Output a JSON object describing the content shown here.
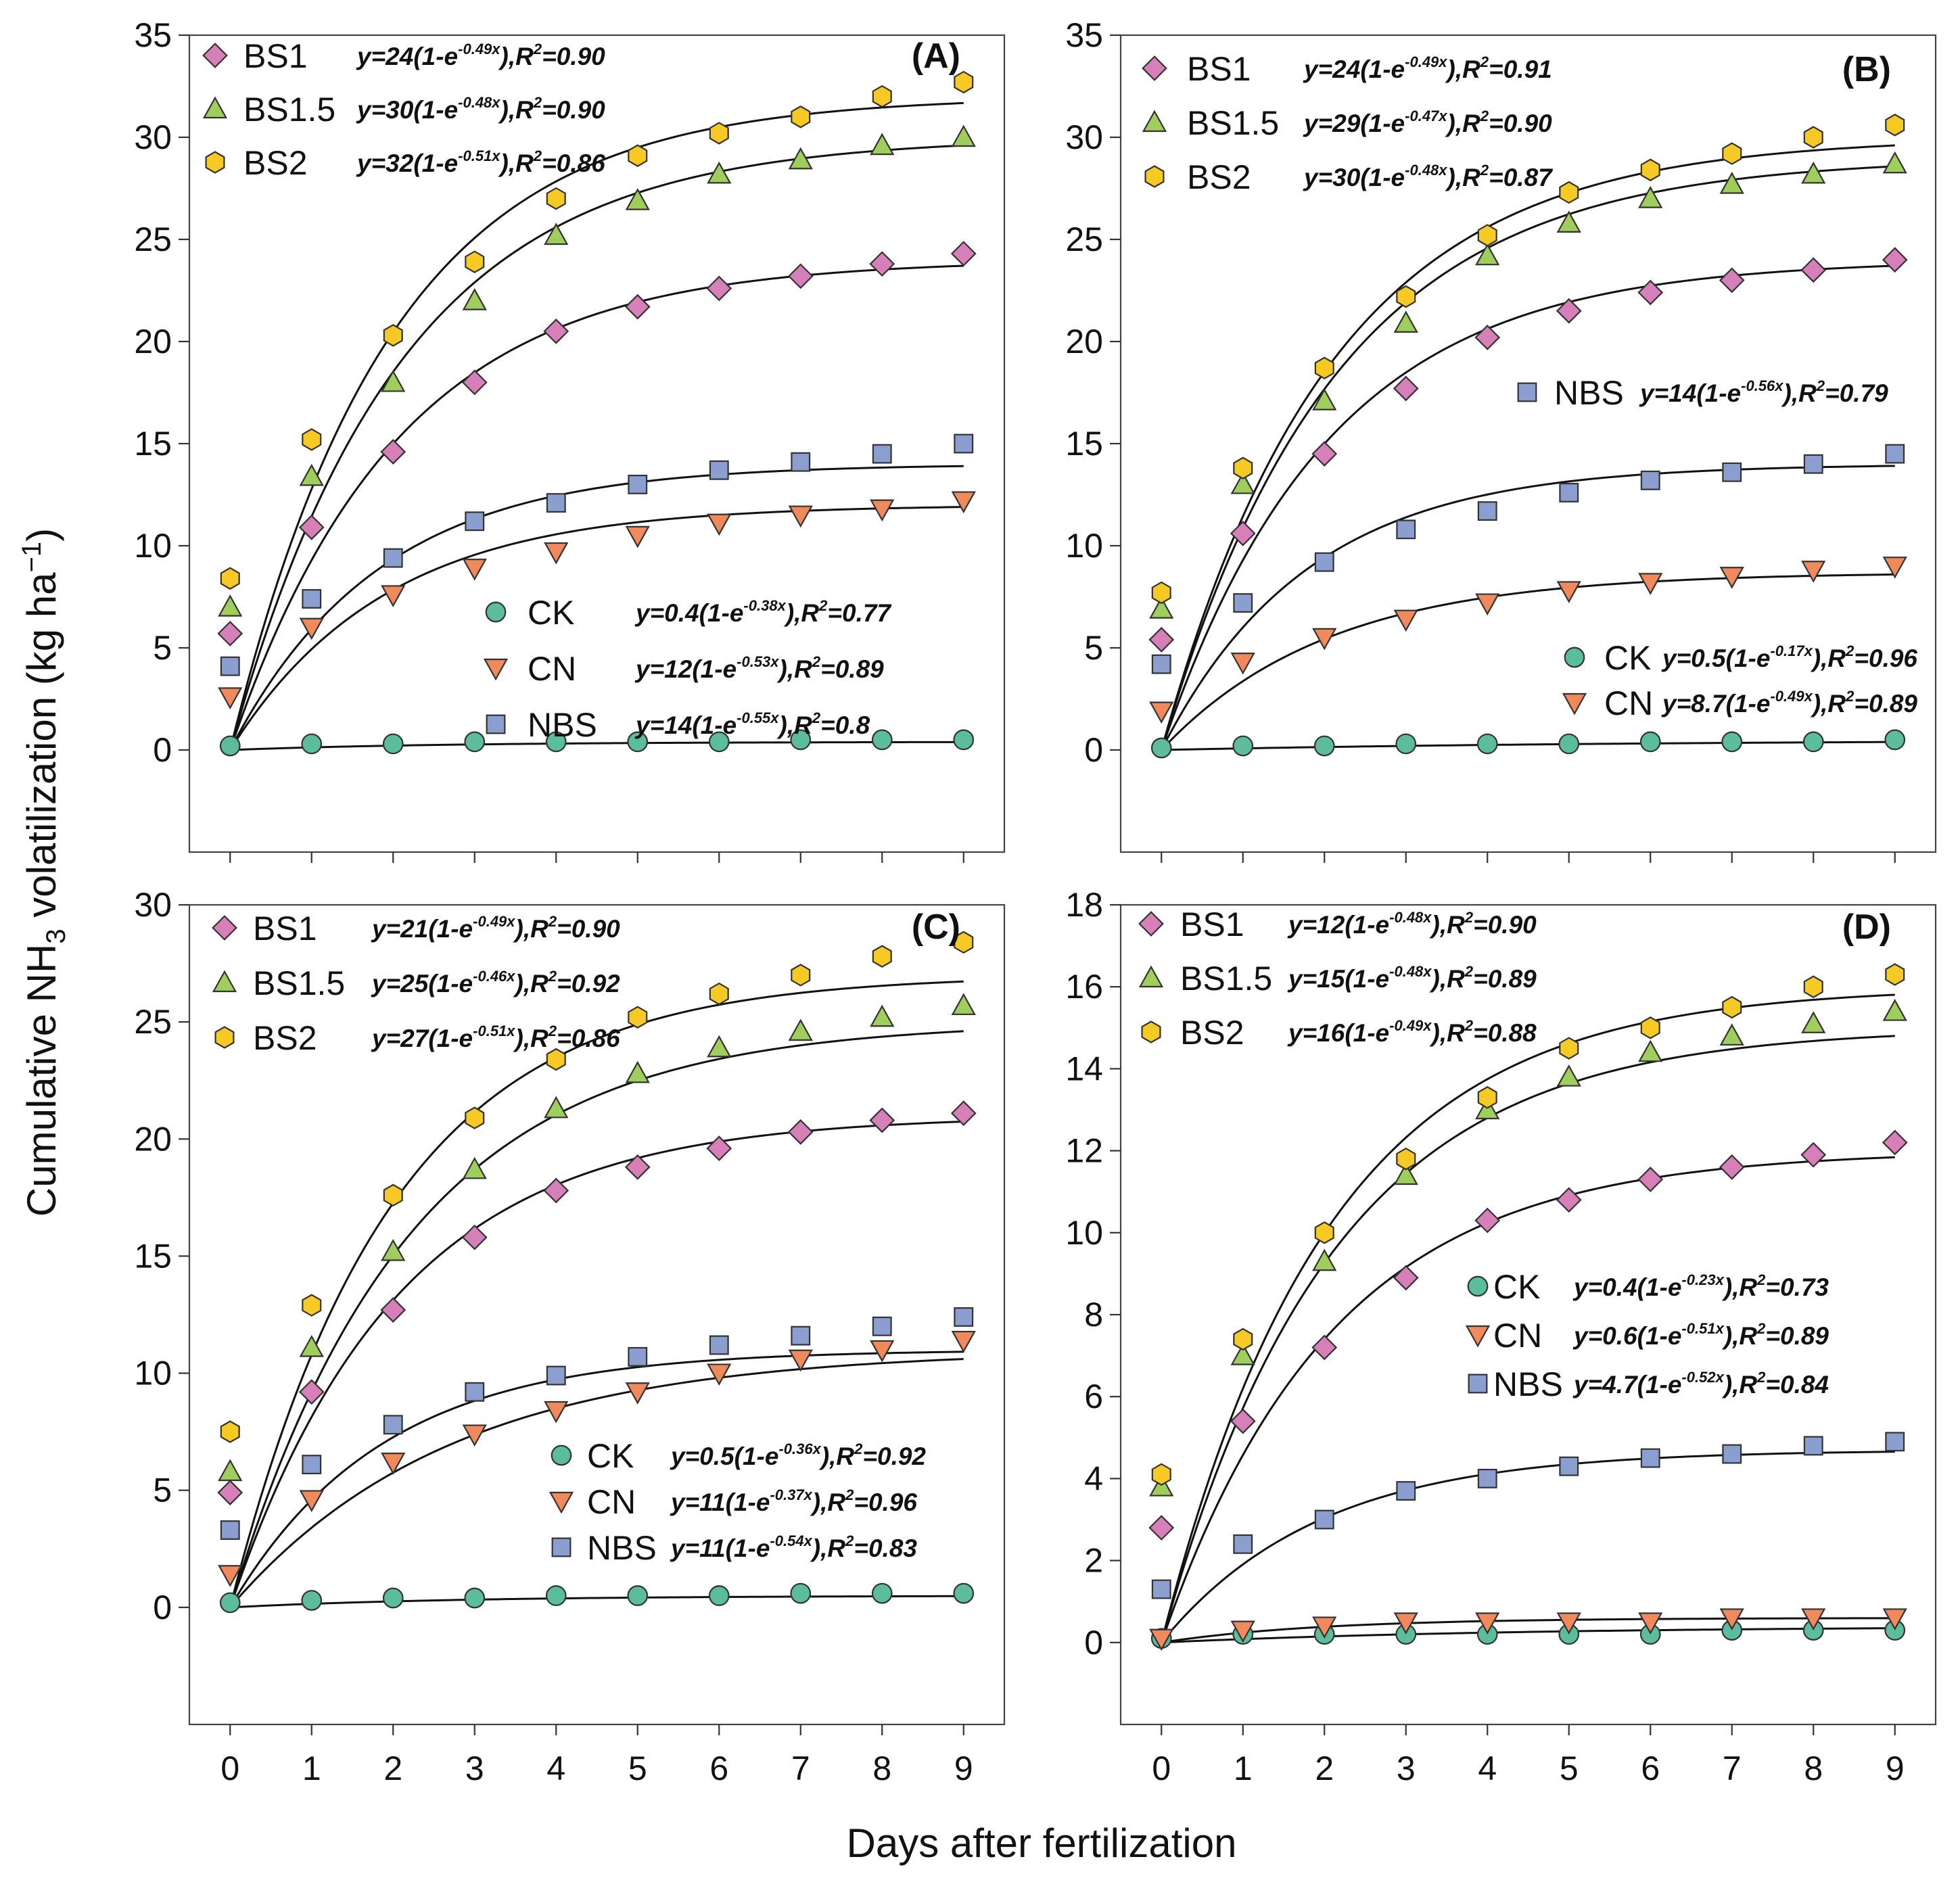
{
  "figure": {
    "y_axis_title_pre": "Cumulative NH",
    "y_axis_title_sub": "3",
    "y_axis_title_post": " volatilization (kg ha",
    "y_axis_title_sup": "−1",
    "y_axis_title_end": ")",
    "x_axis_title": "Days after fertilization"
  },
  "colors": {
    "CK": "#5bbd9b",
    "CN": "#f08a5d",
    "NBS": "#8a9fd0",
    "BS1": "#d77fb8",
    "BS1.5": "#9fce5d",
    "BS2": "#f6c924"
  },
  "chart_data": [
    {
      "type": "scatter",
      "panel": "(A)",
      "xlabel": "Days after fertilization",
      "ylabel": "Cumulative NH3 volatilization (kg ha−1)",
      "x": [
        0,
        1,
        2,
        3,
        4,
        5,
        6,
        7,
        8,
        9
      ],
      "ylim": [
        -5,
        35
      ],
      "yticks": [
        0,
        5,
        10,
        15,
        20,
        25,
        30,
        35
      ],
      "legend_groups": [
        [
          "BS1",
          "BS1.5",
          "BS2"
        ],
        [
          "CK",
          "CN",
          "NBS"
        ]
      ],
      "series": [
        {
          "name": "BS1",
          "marker": "diamond",
          "values": [
            5.7,
            10.9,
            14.6,
            18.0,
            20.5,
            21.7,
            22.6,
            23.2,
            23.8,
            24.3
          ],
          "fit_a": 24,
          "fit_b": 0.49,
          "eq_pre": "y=24(1-e",
          "eq_exp": "-0.49x",
          "eq_r2": "),R",
          "eq_r2_val": "=0.90"
        },
        {
          "name": "BS1.5",
          "marker": "triangle-up",
          "values": [
            7.0,
            13.4,
            18.0,
            22.0,
            25.2,
            26.9,
            28.2,
            28.9,
            29.6,
            30.0
          ],
          "fit_a": 30,
          "fit_b": 0.48,
          "eq_pre": "y=30(1-e",
          "eq_exp": "-0.48x",
          "eq_r2": "),R",
          "eq_r2_val": "=0.90"
        },
        {
          "name": "BS2",
          "marker": "hexagon",
          "values": [
            8.4,
            15.2,
            20.3,
            23.9,
            27.0,
            29.1,
            30.2,
            31.0,
            32.0,
            32.7
          ],
          "fit_a": 32,
          "fit_b": 0.51,
          "eq_pre": "y=32(1-e",
          "eq_exp": "-0.51x",
          "eq_r2": "),R",
          "eq_r2_val": "=0.86"
        },
        {
          "name": "CK",
          "marker": "circle",
          "values": [
            0.2,
            0.3,
            0.3,
            0.4,
            0.4,
            0.4,
            0.4,
            0.5,
            0.5,
            0.5
          ],
          "fit_a": 0.4,
          "fit_b": 0.38,
          "eq_pre": "y=0.4(1-e",
          "eq_exp": "-0.38x",
          "eq_r2": "),R",
          "eq_r2_val": "=0.77"
        },
        {
          "name": "CN",
          "marker": "triangle-down",
          "values": [
            2.6,
            6.0,
            7.6,
            8.9,
            9.7,
            10.5,
            11.1,
            11.5,
            11.8,
            12.2
          ],
          "fit_a": 12,
          "fit_b": 0.53,
          "eq_pre": "y=12(1-e",
          "eq_exp": "-0.53x",
          "eq_r2": "),R",
          "eq_r2_val": "=0.89"
        },
        {
          "name": "NBS",
          "marker": "square",
          "values": [
            4.1,
            7.4,
            9.4,
            11.2,
            12.1,
            13.0,
            13.7,
            14.1,
            14.5,
            15.0
          ],
          "fit_a": 14,
          "fit_b": 0.55,
          "eq_pre": "y=14(1-e",
          "eq_exp": "-0.55x",
          "eq_r2": "),R",
          "eq_r2_val": "=0.8"
        }
      ]
    },
    {
      "type": "scatter",
      "panel": "(B)",
      "xlabel": "Days after fertilization",
      "ylabel": "Cumulative NH3 volatilization (kg ha−1)",
      "x": [
        0,
        1,
        2,
        3,
        4,
        5,
        6,
        7,
        8,
        9
      ],
      "ylim": [
        -5,
        35
      ],
      "yticks": [
        0,
        5,
        10,
        15,
        20,
        25,
        30,
        35
      ],
      "legend_groups": [
        [
          "BS1",
          "BS1.5",
          "BS2"
        ],
        [
          "NBS"
        ],
        [
          "CK",
          "CN"
        ]
      ],
      "series": [
        {
          "name": "BS1",
          "marker": "diamond",
          "values": [
            5.4,
            10.6,
            14.5,
            17.7,
            20.2,
            21.5,
            22.4,
            23.0,
            23.5,
            24.0
          ],
          "fit_a": 24,
          "fit_b": 0.49,
          "eq_pre": "y=24(1-e",
          "eq_exp": "-0.49x",
          "eq_r2": "),R",
          "eq_r2_val": "=0.91"
        },
        {
          "name": "BS1.5",
          "marker": "triangle-up",
          "values": [
            6.9,
            13.0,
            17.1,
            20.9,
            24.2,
            25.8,
            27.0,
            27.7,
            28.2,
            28.7
          ],
          "fit_a": 29,
          "fit_b": 0.47,
          "eq_pre": "y=29(1-e",
          "eq_exp": "-0.47x",
          "eq_r2": "),R",
          "eq_r2_val": "=0.90"
        },
        {
          "name": "BS2",
          "marker": "hexagon",
          "values": [
            7.7,
            13.8,
            18.7,
            22.2,
            25.2,
            27.3,
            28.4,
            29.2,
            30.0,
            30.6
          ],
          "fit_a": 30,
          "fit_b": 0.48,
          "eq_pre": "y=30(1-e",
          "eq_exp": "-0.48x",
          "eq_r2": "),R",
          "eq_r2_val": "=0.87"
        },
        {
          "name": "NBS",
          "marker": "square",
          "values": [
            4.2,
            7.2,
            9.2,
            10.8,
            11.7,
            12.6,
            13.2,
            13.6,
            14.0,
            14.5
          ],
          "fit_a": 14,
          "fit_b": 0.56,
          "eq_pre": "y=14(1-e",
          "eq_exp": "-0.56x",
          "eq_r2": "),R",
          "eq_r2_val": "=0.79"
        },
        {
          "name": "CK",
          "marker": "circle",
          "values": [
            0.1,
            0.2,
            0.2,
            0.3,
            0.3,
            0.3,
            0.4,
            0.4,
            0.4,
            0.5
          ],
          "fit_a": 0.5,
          "fit_b": 0.17,
          "eq_pre": "y=0.5(1-e",
          "eq_exp": "-0.17x",
          "eq_r2": "),R",
          "eq_r2_val": "=0.96"
        },
        {
          "name": "CN",
          "marker": "triangle-down",
          "values": [
            1.9,
            4.3,
            5.5,
            6.4,
            7.2,
            7.8,
            8.2,
            8.5,
            8.8,
            9.0
          ],
          "fit_a": 8.7,
          "fit_b": 0.49,
          "eq_pre": "y=8.7(1-e",
          "eq_exp": "-0.49x",
          "eq_r2": "),R",
          "eq_r2_val": "=0.89"
        }
      ]
    },
    {
      "type": "scatter",
      "panel": "(C)",
      "xlabel": "Days after fertilization",
      "ylabel": "Cumulative NH3 volatilization (kg ha−1)",
      "x": [
        0,
        1,
        2,
        3,
        4,
        5,
        6,
        7,
        8,
        9
      ],
      "ylim": [
        -5,
        30
      ],
      "yticks": [
        0,
        5,
        10,
        15,
        20,
        25,
        30
      ],
      "legend_groups": [
        [
          "BS1",
          "BS1.5",
          "BS2"
        ],
        [
          "CK",
          "CN",
          "NBS"
        ]
      ],
      "series": [
        {
          "name": "BS1",
          "marker": "diamond",
          "values": [
            4.9,
            9.2,
            12.7,
            15.8,
            17.8,
            18.8,
            19.6,
            20.3,
            20.8,
            21.1
          ],
          "fit_a": 21,
          "fit_b": 0.49,
          "eq_pre": "y=21(1-e",
          "eq_exp": "-0.49x",
          "eq_r2": "),R",
          "eq_r2_val": "=0.90"
        },
        {
          "name": "BS1.5",
          "marker": "triangle-up",
          "values": [
            5.8,
            11.1,
            15.2,
            18.7,
            21.3,
            22.8,
            23.9,
            24.6,
            25.2,
            25.7
          ],
          "fit_a": 25,
          "fit_b": 0.46,
          "eq_pre": "y=25(1-e",
          "eq_exp": "-0.46x",
          "eq_r2": "),R",
          "eq_r2_val": "=0.92"
        },
        {
          "name": "BS2",
          "marker": "hexagon",
          "values": [
            7.5,
            12.9,
            17.6,
            20.9,
            23.4,
            25.2,
            26.2,
            27.0,
            27.8,
            28.4
          ],
          "fit_a": 27,
          "fit_b": 0.51,
          "eq_pre": "y=27(1-e",
          "eq_exp": "-0.51x",
          "eq_r2": "),R",
          "eq_r2_val": "=0.86"
        },
        {
          "name": "CK",
          "marker": "circle",
          "values": [
            0.2,
            0.3,
            0.4,
            0.4,
            0.5,
            0.5,
            0.5,
            0.6,
            0.6,
            0.6
          ],
          "fit_a": 0.5,
          "fit_b": 0.36,
          "eq_pre": "y=0.5(1-e",
          "eq_exp": "-0.36x",
          "eq_r2": "),R",
          "eq_r2_val": "=0.92"
        },
        {
          "name": "CN",
          "marker": "triangle-down",
          "values": [
            1.4,
            4.6,
            6.2,
            7.4,
            8.4,
            9.2,
            10.0,
            10.6,
            11.0,
            11.4
          ],
          "fit_a": 11,
          "fit_b": 0.37,
          "eq_pre": "y=11(1-e",
          "eq_exp": "-0.37x",
          "eq_r2": "),R",
          "eq_r2_val": "=0.96"
        },
        {
          "name": "NBS",
          "marker": "square",
          "values": [
            3.3,
            6.1,
            7.8,
            9.2,
            9.9,
            10.7,
            11.2,
            11.6,
            12.0,
            12.4
          ],
          "fit_a": 11,
          "fit_b": 0.54,
          "eq_pre": "y=11(1-e",
          "eq_exp": "-0.54x",
          "eq_r2": "),R",
          "eq_r2_val": "=0.83"
        }
      ]
    },
    {
      "type": "scatter",
      "panel": "(D)",
      "xlabel": "Days after fertilization",
      "ylabel": "Cumulative NH3 volatilization (kg ha−1)",
      "x": [
        0,
        1,
        2,
        3,
        4,
        5,
        6,
        7,
        8,
        9
      ],
      "ylim": [
        -2,
        18
      ],
      "yticks": [
        0,
        2,
        4,
        6,
        8,
        10,
        12,
        14,
        16,
        18
      ],
      "legend_groups": [
        [
          "BS1",
          "BS1.5",
          "BS2"
        ],
        [
          "CK",
          "CN",
          "NBS"
        ]
      ],
      "series": [
        {
          "name": "BS1",
          "marker": "diamond",
          "values": [
            2.8,
            5.4,
            7.2,
            8.9,
            10.3,
            10.8,
            11.3,
            11.6,
            11.9,
            12.2
          ],
          "fit_a": 12,
          "fit_b": 0.48,
          "eq_pre": "y=12(1-e",
          "eq_exp": "-0.48x",
          "eq_r2": "),R",
          "eq_r2_val": "=0.90"
        },
        {
          "name": "BS1.5",
          "marker": "triangle-up",
          "values": [
            3.8,
            7.0,
            9.3,
            11.4,
            13.0,
            13.8,
            14.4,
            14.8,
            15.1,
            15.4
          ],
          "fit_a": 15,
          "fit_b": 0.48,
          "eq_pre": "y=15(1-e",
          "eq_exp": "-0.48x",
          "eq_r2": "),R",
          "eq_r2_val": "=0.89"
        },
        {
          "name": "BS2",
          "marker": "hexagon",
          "values": [
            4.1,
            7.4,
            10.0,
            11.8,
            13.3,
            14.5,
            15.0,
            15.5,
            16.0,
            16.3
          ],
          "fit_a": 16,
          "fit_b": 0.49,
          "eq_pre": "y=16(1-e",
          "eq_exp": "-0.49x",
          "eq_r2": "),R",
          "eq_r2_val": "=0.88"
        },
        {
          "name": "CK",
          "marker": "circle",
          "values": [
            0.1,
            0.2,
            0.2,
            0.2,
            0.2,
            0.2,
            0.2,
            0.3,
            0.3,
            0.3
          ],
          "fit_a": 0.4,
          "fit_b": 0.23,
          "eq_pre": "y=0.4(1-e",
          "eq_exp": "-0.23x",
          "eq_r2": "),R",
          "eq_r2_val": "=0.73"
        },
        {
          "name": "CN",
          "marker": "triangle-down",
          "values": [
            0.1,
            0.3,
            0.4,
            0.5,
            0.5,
            0.5,
            0.5,
            0.6,
            0.6,
            0.6
          ],
          "fit_a": 0.6,
          "fit_b": 0.51,
          "eq_pre": "y=0.6(1-e",
          "eq_exp": "-0.51x",
          "eq_r2": "),R",
          "eq_r2_val": "=0.89"
        },
        {
          "name": "NBS",
          "marker": "square",
          "values": [
            1.3,
            2.4,
            3.0,
            3.7,
            4.0,
            4.3,
            4.5,
            4.6,
            4.8,
            4.9
          ],
          "fit_a": 4.7,
          "fit_b": 0.52,
          "eq_pre": "y=4.7(1-e",
          "eq_exp": "-0.52x",
          "eq_r2": "),R",
          "eq_r2_val": "=0.84"
        }
      ]
    }
  ]
}
